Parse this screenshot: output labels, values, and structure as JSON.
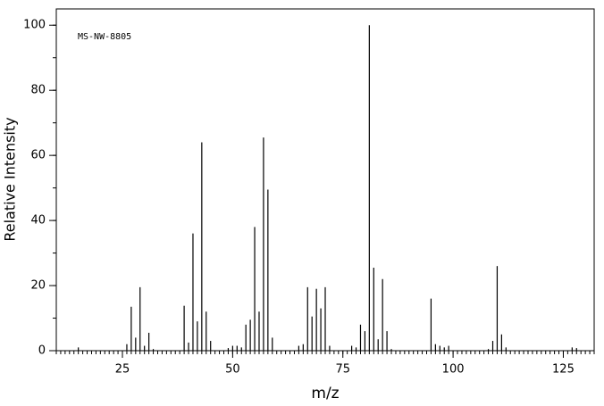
{
  "chart_data": {
    "type": "stem",
    "annotation": "MS-NW-8805",
    "xlabel": "m/z",
    "ylabel": "Relative Intensity",
    "x": [
      15,
      26,
      27,
      28,
      29,
      30,
      31,
      32,
      39,
      40,
      41,
      42,
      43,
      44,
      45,
      49,
      50,
      51,
      52,
      53,
      54,
      55,
      56,
      57,
      58,
      59,
      65,
      66,
      67,
      68,
      69,
      70,
      71,
      72,
      77,
      78,
      79,
      80,
      81,
      82,
      83,
      84,
      85,
      86,
      95,
      96,
      97,
      98,
      99,
      108,
      109,
      110,
      111,
      112,
      127,
      128
    ],
    "values": [
      1,
      2,
      13.5,
      4,
      19.5,
      1.5,
      5.5,
      0.5,
      13.8,
      2.5,
      36,
      9,
      64,
      12,
      3,
      0.8,
      1.5,
      1.5,
      1,
      8,
      9.5,
      38,
      12,
      65.5,
      49.5,
      4,
      1.5,
      2,
      19.5,
      10.5,
      19,
      13,
      19.5,
      1.5,
      1.5,
      1,
      8,
      6,
      100,
      25.5,
      3.5,
      22,
      6,
      0.5,
      16,
      2,
      1.5,
      1,
      1.5,
      0.5,
      3,
      26,
      5,
      1,
      1,
      0.8
    ],
    "color": "#000000",
    "xlim": [
      10,
      132
    ],
    "ylim": [
      0,
      105
    ],
    "xticks": [
      25,
      50,
      75,
      100,
      125
    ],
    "yticks": [
      0,
      20,
      40,
      60,
      80,
      100
    ],
    "x_minor_step": 1,
    "y_minor_step": 10
  }
}
